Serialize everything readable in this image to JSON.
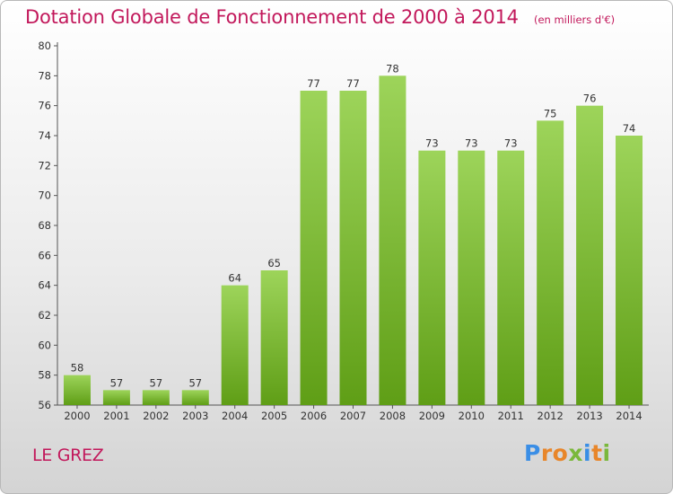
{
  "header": {
    "title": "Dotation Globale de Fonctionnement de 2000 à 2014",
    "unit": "(en milliers d'€)"
  },
  "footer": {
    "commune": "LE GREZ",
    "brand": "Proxiti",
    "brand_colors": [
      "#3a8ee6",
      "#e8862a",
      "#e8862a",
      "#7ab83b",
      "#3a8ee6",
      "#e8862a",
      "#7ab83b"
    ]
  },
  "colors": {
    "bar_light": "#9dd45a",
    "bar_dark": "#5f9e16",
    "title": "#c2185b",
    "axis": "#555555"
  },
  "chart_data": {
    "type": "bar",
    "title": "Dotation Globale de Fonctionnement de 2000 à 2014",
    "xlabel": "",
    "ylabel": "",
    "categories": [
      "2000",
      "2001",
      "2002",
      "2003",
      "2004",
      "2005",
      "2006",
      "2007",
      "2008",
      "2009",
      "2010",
      "2011",
      "2012",
      "2013",
      "2014"
    ],
    "values": [
      58,
      57,
      57,
      57,
      64,
      65,
      77,
      77,
      78,
      73,
      73,
      73,
      75,
      76,
      74
    ],
    "ylim": [
      56,
      80
    ],
    "yticks": [
      56,
      58,
      60,
      62,
      64,
      66,
      68,
      70,
      72,
      74,
      76,
      78,
      80
    ],
    "grid": false
  }
}
